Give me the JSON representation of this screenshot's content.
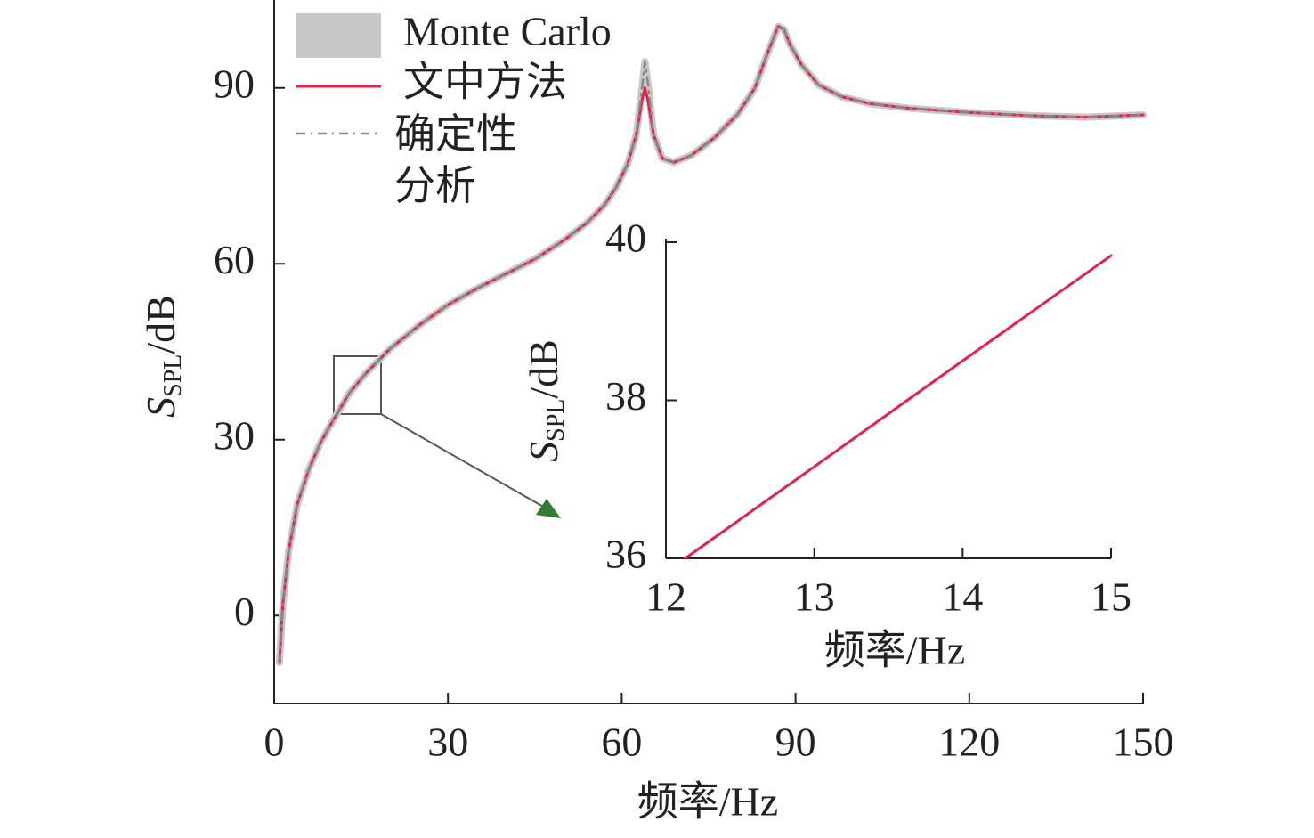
{
  "chart_data": [
    {
      "type": "line",
      "x_label": "频率/Hz",
      "y_label": {
        "symbol": "S",
        "subscript": "SPL",
        "unit": "/dB"
      },
      "x": [
        0.9,
        1.5,
        2.5,
        4,
        6,
        8,
        10,
        13,
        16,
        20,
        25,
        30,
        35,
        40,
        45,
        50,
        54,
        57,
        59,
        61,
        62.5,
        63.5,
        64,
        64.5,
        65.5,
        67,
        69,
        72,
        76,
        80,
        83,
        85,
        87,
        88,
        89,
        91,
        94,
        98,
        103,
        110,
        120,
        130,
        140,
        150
      ],
      "series": [
        {
          "name": "Monte Carlo",
          "color": "#c8c8c8",
          "values": [
            -8,
            2,
            11,
            19,
            25,
            29.5,
            33,
            38,
            41.5,
            45.5,
            49.5,
            53,
            55.8,
            58.3,
            60.8,
            64,
            67,
            70,
            73,
            77,
            82,
            90,
            94.5,
            91,
            82,
            78,
            77.3,
            78.5,
            81.5,
            85.5,
            90,
            95.5,
            100.5,
            100,
            97.5,
            94,
            90.5,
            88.5,
            87.3,
            86.5,
            85.8,
            85.3,
            85,
            85.4
          ]
        },
        {
          "name": "文中方法",
          "color": "#e8204a",
          "values": [
            -8,
            2,
            11,
            19,
            25,
            29.5,
            33,
            38,
            41.5,
            45.5,
            49.5,
            53,
            55.8,
            58.3,
            60.8,
            64,
            67,
            70,
            73,
            77,
            82,
            88,
            90,
            88,
            82,
            78,
            77.3,
            78.5,
            81.5,
            85.5,
            90,
            95.5,
            100.5,
            100,
            97.5,
            94,
            90.5,
            88.5,
            87.3,
            86.5,
            85.8,
            85.3,
            85,
            85.4
          ]
        },
        {
          "name": "确定性分析",
          "color": "#888888",
          "values": [
            -8,
            2,
            11,
            19,
            25,
            29.5,
            33,
            38,
            41.5,
            45.5,
            49.5,
            53,
            55.8,
            58.3,
            60.8,
            64,
            67,
            70,
            73,
            77,
            82,
            90,
            94.5,
            91,
            82,
            78,
            77.3,
            78.5,
            81.5,
            85.5,
            90,
            95.5,
            100.5,
            100,
            97.5,
            94,
            90.5,
            88.5,
            87.3,
            86.5,
            85.8,
            85.3,
            85,
            85.4
          ]
        }
      ],
      "xlim": [
        0,
        150
      ],
      "ylim": [
        -15,
        105
      ],
      "xticks": [
        0,
        30,
        60,
        90,
        120,
        150
      ],
      "yticks": [
        0,
        30,
        60,
        90
      ]
    },
    {
      "type": "line",
      "x_label": "频率/Hz",
      "y_label": {
        "symbol": "S",
        "subscript": "SPL",
        "unit": "/dB"
      },
      "x": [
        12.13,
        13,
        14,
        15
      ],
      "values": [
        36,
        37.16,
        38.5,
        39.83
      ],
      "color": "#e8204a",
      "xlim": [
        12,
        15
      ],
      "ylim": [
        36,
        40
      ],
      "xticks": [
        12,
        13,
        14,
        15
      ],
      "yticks": [
        36,
        38,
        40
      ]
    }
  ]
}
